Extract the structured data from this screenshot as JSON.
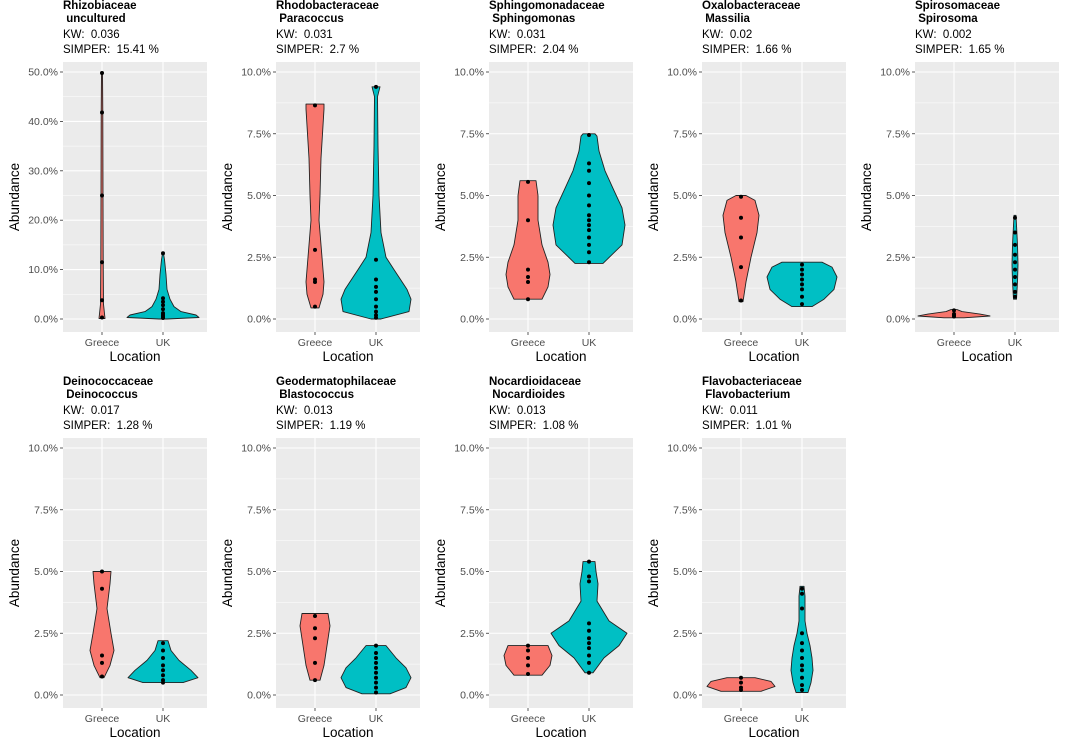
{
  "figure": {
    "ylabel": "Abundance",
    "xlabel": "Location",
    "categories": [
      "Greece",
      "UK"
    ],
    "colors": {
      "Greece": "#f8766d",
      "UK": "#00bfc4",
      "panel_bg": "#ebebeb",
      "grid": "#ffffff"
    }
  },
  "chart_data": [
    {
      "type": "violin",
      "family": "Rhizobiaceae",
      "genus": " uncultured",
      "kw": "KW:  0.036",
      "simper": "SIMPER:  15.41 %",
      "ylim": [
        0,
        50
      ],
      "yticks": [
        0,
        10,
        20,
        30,
        40,
        50
      ],
      "ytick_labels": [
        "0.0%",
        "10.0%",
        "20.0%",
        "30.0%",
        "40.0%",
        "50.0%"
      ],
      "groups": [
        {
          "name": "Greece",
          "profile": [
            [
              0.1,
              3
            ],
            [
              3,
              1.5
            ],
            [
              12,
              1.2
            ],
            [
              25,
              1
            ],
            [
              42,
              0.8
            ],
            [
              50,
              0.5
            ]
          ],
          "points": [
            0.3,
            3.8,
            11.5,
            25,
            41.8,
            49.8
          ]
        },
        {
          "name": "UK",
          "profile": [
            [
              0,
              4
            ],
            [
              0.3,
              36
            ],
            [
              0.8,
              33
            ],
            [
              1.5,
              18
            ],
            [
              2.5,
              11
            ],
            [
              4,
              7
            ],
            [
              6,
              4
            ],
            [
              9,
              3
            ],
            [
              12,
              1.5
            ],
            [
              13.4,
              0.4
            ]
          ],
          "points": [
            0.2,
            0.5,
            0.8,
            1.2,
            2,
            2.8,
            3.5,
            4.2,
            13.3
          ]
        }
      ]
    },
    {
      "type": "violin",
      "family": "Rhodobacteraceae",
      "genus": " Paracoccus",
      "kw": "KW:  0.031",
      "simper": "SIMPER:  2.7 %",
      "ylim": [
        0,
        10
      ],
      "yticks": [
        0,
        2.5,
        5,
        7.5,
        10
      ],
      "ytick_labels": [
        "0.0%",
        "2.5%",
        "5.0%",
        "7.5%",
        "10.0%"
      ],
      "groups": [
        {
          "name": "Greece",
          "profile": [
            [
              0.45,
              4
            ],
            [
              1,
              8
            ],
            [
              1.5,
              9
            ],
            [
              2,
              8
            ],
            [
              3,
              6
            ],
            [
              4,
              4
            ],
            [
              5,
              5
            ],
            [
              6.5,
              6
            ],
            [
              8.5,
              9
            ],
            [
              8.7,
              9
            ]
          ],
          "points": [
            0.5,
            1.5,
            1.6,
            2.8,
            8.65
          ]
        },
        {
          "name": "UK",
          "profile": [
            [
              0,
              5
            ],
            [
              0.3,
              33
            ],
            [
              0.8,
              35
            ],
            [
              1.2,
              31
            ],
            [
              2,
              18
            ],
            [
              2.5,
              10
            ],
            [
              3.5,
              5
            ],
            [
              5,
              3
            ],
            [
              7,
              2
            ],
            [
              9,
              1.5
            ],
            [
              9.4,
              4
            ]
          ],
          "points": [
            0.05,
            0.15,
            0.3,
            0.5,
            0.8,
            1.1,
            1.3,
            1.6,
            2.4,
            9.4
          ]
        }
      ]
    },
    {
      "type": "violin",
      "family": "Sphingomonadaceae",
      "genus": " Sphingomonas",
      "kw": "KW:  0.031",
      "simper": "SIMPER:  2.04 %",
      "ylim": [
        0,
        10
      ],
      "yticks": [
        0,
        2.5,
        5,
        7.5,
        10
      ],
      "ytick_labels": [
        "0.0%",
        "2.5%",
        "5.0%",
        "7.5%",
        "10.0%"
      ],
      "groups": [
        {
          "name": "Greece",
          "profile": [
            [
              0.8,
              14
            ],
            [
              1.3,
              20
            ],
            [
              1.8,
              22
            ],
            [
              2.3,
              20
            ],
            [
              3,
              14
            ],
            [
              4,
              10
            ],
            [
              5,
              10
            ],
            [
              5.6,
              8
            ]
          ],
          "points": [
            0.8,
            1.5,
            1.7,
            2,
            4,
            5.55
          ]
        },
        {
          "name": "UK",
          "profile": [
            [
              2.25,
              14
            ],
            [
              3,
              33
            ],
            [
              3.8,
              36
            ],
            [
              4.5,
              33
            ],
            [
              5.2,
              25
            ],
            [
              6,
              16
            ],
            [
              6.8,
              10
            ],
            [
              7.4,
              8
            ],
            [
              7.5,
              6
            ]
          ],
          "points": [
            2.3,
            2.7,
            3,
            3.3,
            3.6,
            3.8,
            4,
            4.2,
            4.6,
            5,
            5.5,
            6,
            6.3,
            7.45
          ]
        }
      ]
    },
    {
      "type": "violin",
      "family": "Oxalobacteraceae",
      "genus": " Massilia",
      "kw": "KW:  0.02",
      "simper": "SIMPER:  1.66 %",
      "ylim": [
        0,
        10
      ],
      "yticks": [
        0,
        2.5,
        5,
        7.5,
        10
      ],
      "ytick_labels": [
        "0.0%",
        "2.5%",
        "5.0%",
        "7.5%",
        "10.0%"
      ],
      "groups": [
        {
          "name": "Greece",
          "profile": [
            [
              0.7,
              2
            ],
            [
              1.5,
              5
            ],
            [
              2.5,
              10
            ],
            [
              3.5,
              16
            ],
            [
              4.2,
              18
            ],
            [
              4.8,
              14
            ],
            [
              5,
              5
            ]
          ],
          "points": [
            0.75,
            2.1,
            3.3,
            4.1,
            4.95
          ]
        },
        {
          "name": "UK",
          "profile": [
            [
              0.5,
              10
            ],
            [
              0.8,
              22
            ],
            [
              1.2,
              32
            ],
            [
              1.7,
              35
            ],
            [
              2.1,
              30
            ],
            [
              2.3,
              20
            ]
          ],
          "points": [
            0.6,
            0.9,
            1.2,
            1.4,
            1.6,
            1.8,
            2,
            2.2
          ]
        }
      ]
    },
    {
      "type": "violin",
      "family": "Spirosomaceae",
      "genus": " Spirosoma",
      "kw": "KW:  0.002",
      "simper": "SIMPER:  1.65 %",
      "ylim": [
        0,
        10
      ],
      "yticks": [
        0,
        2.5,
        5,
        7.5,
        10
      ],
      "ytick_labels": [
        "0.0%",
        "2.5%",
        "5.0%",
        "7.5%",
        "10.0%"
      ],
      "groups": [
        {
          "name": "Greece",
          "profile": [
            [
              0.05,
              10
            ],
            [
              0.12,
              36
            ],
            [
              0.2,
              26
            ],
            [
              0.3,
              8
            ],
            [
              0.38,
              3
            ]
          ],
          "points": [
            0.1,
            0.15,
            0.2,
            0.35
          ]
        },
        {
          "name": "UK",
          "profile": [
            [
              0.8,
              1.5
            ],
            [
              1.5,
              2.5
            ],
            [
              2.2,
              3
            ],
            [
              3,
              2.5
            ],
            [
              3.8,
              1.5
            ],
            [
              4.2,
              1
            ]
          ],
          "points": [
            0.9,
            1.1,
            1.4,
            1.7,
            2,
            2.3,
            2.6,
            3,
            3.5,
            4.1
          ]
        }
      ]
    },
    {
      "type": "violin",
      "family": "Deinococcaceae",
      "genus": " Deinococcus",
      "kw": "KW:  0.017",
      "simper": "SIMPER:  1.28 %",
      "ylim": [
        0,
        10
      ],
      "yticks": [
        0,
        2.5,
        5,
        7.5,
        10
      ],
      "ytick_labels": [
        "0.0%",
        "2.5%",
        "5.0%",
        "7.5%",
        "10.0%"
      ],
      "groups": [
        {
          "name": "Greece",
          "profile": [
            [
              0.7,
              2
            ],
            [
              1.2,
              8
            ],
            [
              1.8,
              12
            ],
            [
              2.5,
              9
            ],
            [
              3.5,
              5
            ],
            [
              4.5,
              8
            ],
            [
              5,
              9
            ]
          ],
          "points": [
            0.75,
            1.3,
            1.6,
            4.3,
            5
          ]
        },
        {
          "name": "UK",
          "profile": [
            [
              0.5,
              20
            ],
            [
              0.7,
              35
            ],
            [
              1,
              28
            ],
            [
              1.4,
              16
            ],
            [
              1.8,
              8
            ],
            [
              2.2,
              5
            ]
          ],
          "points": [
            0.5,
            0.6,
            0.8,
            1,
            1.2,
            1.5,
            1.8,
            2.1
          ]
        }
      ]
    },
    {
      "type": "violin",
      "family": "Geodermatophilaceae",
      "genus": " Blastococcus",
      "kw": "KW:  0.013",
      "simper": "SIMPER:  1.19 %",
      "ylim": [
        0,
        10
      ],
      "yticks": [
        0,
        2.5,
        5,
        7.5,
        10
      ],
      "ytick_labels": [
        "0.0%",
        "2.5%",
        "5.0%",
        "7.5%",
        "10.0%"
      ],
      "groups": [
        {
          "name": "Greece",
          "profile": [
            [
              0.6,
              5
            ],
            [
              1.2,
              9
            ],
            [
              2,
              12
            ],
            [
              2.8,
              15
            ],
            [
              3.3,
              13
            ]
          ],
          "points": [
            0.6,
            1.3,
            2.3,
            2.7,
            3.2
          ]
        },
        {
          "name": "UK",
          "profile": [
            [
              0.05,
              14
            ],
            [
              0.3,
              30
            ],
            [
              0.7,
              35
            ],
            [
              1.1,
              30
            ],
            [
              1.5,
              20
            ],
            [
              2,
              10
            ]
          ],
          "points": [
            0.1,
            0.3,
            0.5,
            0.7,
            0.9,
            1.1,
            1.3,
            1.5,
            1.7,
            2
          ]
        }
      ]
    },
    {
      "type": "violin",
      "family": "Nocardioidaceae",
      "genus": " Nocardioides",
      "kw": "KW:  0.013",
      "simper": "SIMPER:  1.08 %",
      "ylim": [
        0,
        10
      ],
      "yticks": [
        0,
        2.5,
        5,
        7.5,
        10
      ],
      "ytick_labels": [
        "0.0%",
        "2.5%",
        "5.0%",
        "7.5%",
        "10.0%"
      ],
      "groups": [
        {
          "name": "Greece",
          "profile": [
            [
              0.8,
              14
            ],
            [
              1.2,
              22
            ],
            [
              1.6,
              24
            ],
            [
              2,
              20
            ]
          ],
          "points": [
            0.85,
            1.2,
            1.5,
            1.8,
            2
          ]
        },
        {
          "name": "UK",
          "profile": [
            [
              0.9,
              4
            ],
            [
              1.5,
              15
            ],
            [
              2,
              30
            ],
            [
              2.5,
              38
            ],
            [
              3,
              20
            ],
            [
              3.8,
              8
            ],
            [
              4.5,
              9
            ],
            [
              5,
              7
            ],
            [
              5.4,
              6
            ]
          ],
          "points": [
            0.9,
            1.3,
            1.6,
            1.9,
            2.1,
            2.3,
            2.6,
            2.9,
            4.6,
            4.8,
            5.4
          ]
        }
      ]
    },
    {
      "type": "violin",
      "family": "Flavobacteriaceae",
      "genus": " Flavobacterium",
      "kw": "KW:  0.011",
      "simper": "SIMPER:  1.01 %",
      "ylim": [
        0,
        10
      ],
      "yticks": [
        0,
        2.5,
        5,
        7.5,
        10
      ],
      "ytick_labels": [
        "0.0%",
        "2.5%",
        "5.0%",
        "7.5%",
        "10.0%"
      ],
      "groups": [
        {
          "name": "Greece",
          "profile": [
            [
              0.15,
              20
            ],
            [
              0.35,
              34
            ],
            [
              0.55,
              30
            ],
            [
              0.7,
              14
            ]
          ],
          "points": [
            0.2,
            0.3,
            0.5,
            0.7
          ]
        },
        {
          "name": "UK",
          "profile": [
            [
              0.1,
              6
            ],
            [
              0.5,
              9
            ],
            [
              1,
              11
            ],
            [
              1.5,
              10
            ],
            [
              2,
              8
            ],
            [
              2.5,
              5
            ],
            [
              3,
              3
            ],
            [
              3.5,
              3
            ],
            [
              4,
              3
            ],
            [
              4.4,
              2
            ]
          ],
          "points": [
            0.2,
            0.4,
            0.7,
            1,
            1.2,
            1.5,
            1.8,
            2.1,
            2.5,
            3.5,
            4.1,
            4.3
          ]
        }
      ]
    }
  ]
}
